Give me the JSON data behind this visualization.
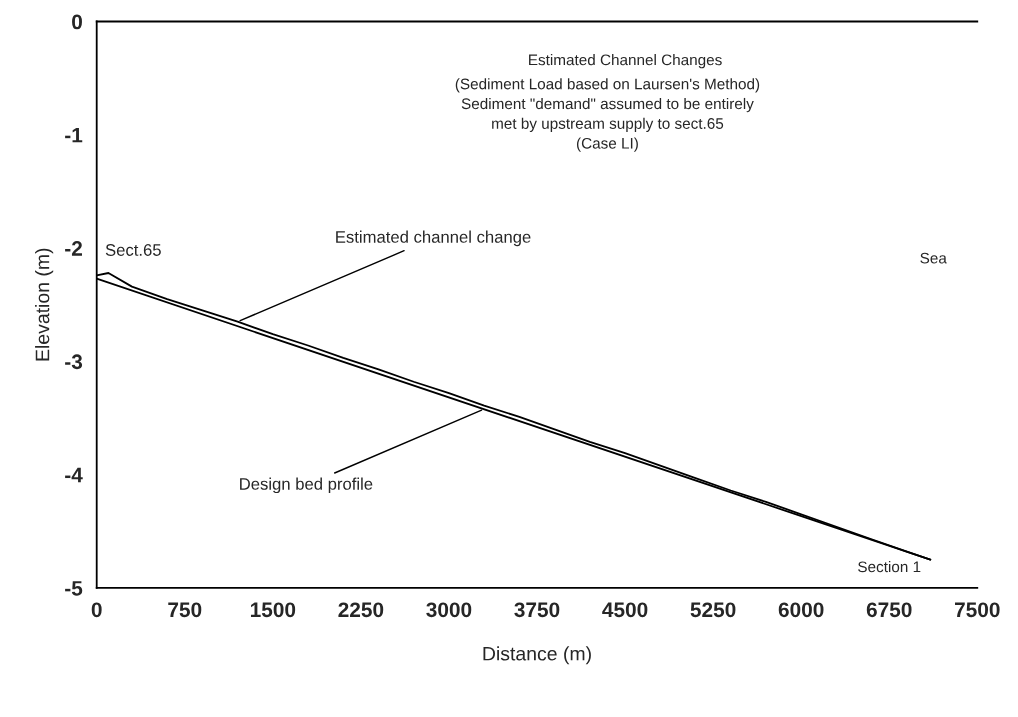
{
  "chart_data": {
    "type": "line",
    "title": "Estimated Channel Changes",
    "subtitle": "(Sediment Load based on Laursen's Method)\nSediment \"demand\" assumed to be entirely\nmet by upstream supply to sect.65\n(Case LI)",
    "xlabel": "Distance (m)",
    "ylabel": "Elevation (m)",
    "series": [
      {
        "color": "#000000",
        "x": [
          0,
          7100
        ],
        "values": [
          -2.27,
          -4.75
        ]
      },
      {
        "color": "#000000",
        "x": [
          0,
          100,
          300,
          600,
          900,
          1200,
          1500,
          1800,
          2100,
          2400,
          2700,
          3000,
          3300,
          3600,
          3900,
          4200,
          4500,
          4800,
          5100,
          5400,
          5700,
          6000,
          6300,
          6600,
          6900,
          7100
        ],
        "values": [
          -2.24,
          -2.22,
          -2.34,
          -2.45,
          -2.55,
          -2.65,
          -2.76,
          -2.86,
          -2.97,
          -3.07,
          -3.18,
          -3.28,
          -3.39,
          -3.49,
          -3.6,
          -3.71,
          -3.81,
          -3.92,
          -4.03,
          -4.14,
          -4.24,
          -4.35,
          -4.46,
          -4.57,
          -4.68,
          -4.75
        ]
      }
    ],
    "annotations": [
      {
        "text": "Sect.65",
        "x": 0,
        "y": -2.25
      },
      {
        "text": "Estimated channel change",
        "x": 1200,
        "y": -2.65
      },
      {
        "text": "Design bed profile",
        "x": 3300,
        "y": -3.42
      },
      "Section 1",
      "Sea"
    ],
    "xlim": [
      0,
      7500
    ],
    "ylim": [
      -5,
      0
    ],
    "xticks": [
      0,
      750,
      1500,
      2250,
      3000,
      3750,
      4500,
      5250,
      6000,
      6750,
      7500
    ],
    "yticks": [
      -5,
      -4,
      -3,
      -2,
      -1,
      0
    ],
    "grid": false,
    "legend": false,
    "line_style": "solid",
    "marker": "none"
  }
}
